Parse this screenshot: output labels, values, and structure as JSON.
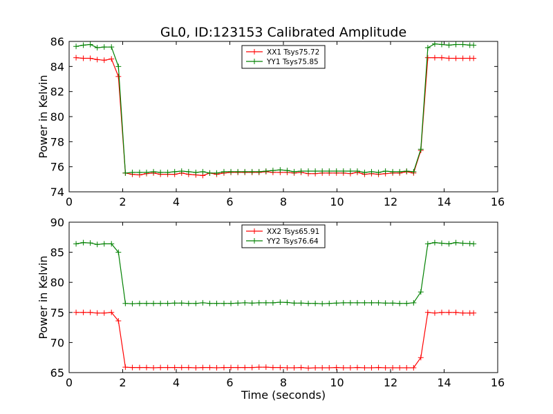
{
  "title": "GL0, ID:123153 Calibrated Amplitude",
  "xlabel": "Time (seconds)",
  "chart_data": [
    {
      "type": "line",
      "ylabel": "Power in Kelvin",
      "xlim": [
        0,
        16
      ],
      "ylim": [
        74,
        86
      ],
      "xticks": [
        0,
        2,
        4,
        6,
        8,
        10,
        12,
        14,
        16
      ],
      "yticks": [
        74,
        76,
        78,
        80,
        82,
        84,
        86
      ],
      "legend_position": "top-center",
      "x": [
        0.26,
        0.53,
        0.79,
        1.05,
        1.31,
        1.58,
        1.84,
        2.1,
        2.36,
        2.63,
        2.89,
        3.15,
        3.41,
        3.68,
        3.94,
        4.2,
        4.46,
        4.73,
        4.99,
        5.25,
        5.51,
        5.78,
        6.04,
        6.3,
        6.56,
        6.83,
        7.09,
        7.35,
        7.61,
        7.88,
        8.14,
        8.4,
        8.66,
        8.93,
        9.19,
        9.45,
        9.71,
        9.98,
        10.24,
        10.5,
        10.76,
        11.03,
        11.29,
        11.55,
        11.81,
        12.08,
        12.34,
        12.6,
        12.86,
        13.13,
        13.39,
        13.65,
        13.91,
        14.18,
        14.44,
        14.7,
        14.96,
        15.1
      ],
      "series": [
        {
          "name": "XX1 Tsys75.72",
          "color": "#ff0000",
          "values": [
            84.7,
            84.65,
            84.65,
            84.55,
            84.5,
            84.6,
            83.2,
            75.5,
            75.4,
            75.35,
            75.45,
            75.5,
            75.4,
            75.4,
            75.4,
            75.5,
            75.4,
            75.35,
            75.3,
            75.5,
            75.4,
            75.5,
            75.55,
            75.55,
            75.55,
            75.55,
            75.55,
            75.6,
            75.55,
            75.55,
            75.55,
            75.5,
            75.55,
            75.45,
            75.45,
            75.5,
            75.5,
            75.5,
            75.5,
            75.45,
            75.55,
            75.4,
            75.45,
            75.4,
            75.45,
            75.5,
            75.5,
            75.6,
            75.5,
            77.3,
            84.7,
            84.7,
            84.7,
            84.65,
            84.65,
            84.65,
            84.65,
            84.65
          ]
        },
        {
          "name": "YY1 Tsys75.85",
          "color": "#008000",
          "values": [
            85.6,
            85.7,
            85.75,
            85.5,
            85.55,
            85.55,
            84.0,
            75.5,
            75.55,
            75.55,
            75.55,
            75.6,
            75.55,
            75.55,
            75.6,
            75.65,
            75.6,
            75.55,
            75.6,
            75.5,
            75.5,
            75.6,
            75.6,
            75.6,
            75.6,
            75.6,
            75.6,
            75.65,
            75.7,
            75.75,
            75.7,
            75.6,
            75.65,
            75.65,
            75.65,
            75.65,
            75.65,
            75.65,
            75.65,
            75.65,
            75.65,
            75.55,
            75.6,
            75.55,
            75.65,
            75.6,
            75.6,
            75.65,
            75.6,
            77.4,
            85.5,
            85.8,
            85.75,
            85.7,
            85.75,
            85.75,
            85.7,
            85.7
          ]
        }
      ]
    },
    {
      "type": "line",
      "ylabel": "Power in Kelvin",
      "xlim": [
        0,
        16
      ],
      "ylim": [
        65,
        90
      ],
      "xticks": [
        0,
        2,
        4,
        6,
        8,
        10,
        12,
        14,
        16
      ],
      "yticks": [
        65,
        70,
        75,
        80,
        85,
        90
      ],
      "legend_position": "top-center",
      "x": [
        0.26,
        0.53,
        0.79,
        1.05,
        1.31,
        1.58,
        1.84,
        2.1,
        2.36,
        2.63,
        2.89,
        3.15,
        3.41,
        3.68,
        3.94,
        4.2,
        4.46,
        4.73,
        4.99,
        5.25,
        5.51,
        5.78,
        6.04,
        6.3,
        6.56,
        6.83,
        7.09,
        7.35,
        7.61,
        7.88,
        8.14,
        8.4,
        8.66,
        8.93,
        9.19,
        9.45,
        9.71,
        9.98,
        10.24,
        10.5,
        10.76,
        11.03,
        11.29,
        11.55,
        11.81,
        12.08,
        12.34,
        12.6,
        12.86,
        13.13,
        13.39,
        13.65,
        13.91,
        14.18,
        14.44,
        14.7,
        14.96,
        15.1
      ],
      "series": [
        {
          "name": "XX2 Tsys65.91",
          "color": "#ff0000",
          "values": [
            75.0,
            75.0,
            75.0,
            74.9,
            74.9,
            75.0,
            73.6,
            65.9,
            65.85,
            65.85,
            65.85,
            65.8,
            65.85,
            65.85,
            65.85,
            65.85,
            65.85,
            65.8,
            65.85,
            65.85,
            65.8,
            65.85,
            65.85,
            65.85,
            65.85,
            65.85,
            65.9,
            65.9,
            65.85,
            65.85,
            65.8,
            65.8,
            65.85,
            65.75,
            65.8,
            65.8,
            65.8,
            65.85,
            65.8,
            65.8,
            65.85,
            65.8,
            65.8,
            65.85,
            65.8,
            65.8,
            65.8,
            65.8,
            65.8,
            67.5,
            75.0,
            74.9,
            75.0,
            75.0,
            75.0,
            74.9,
            74.9,
            74.9
          ]
        },
        {
          "name": "YY2 Tsys76.64",
          "color": "#008000",
          "values": [
            86.4,
            86.6,
            86.55,
            86.3,
            86.4,
            86.4,
            85.0,
            76.5,
            76.45,
            76.5,
            76.5,
            76.5,
            76.5,
            76.5,
            76.55,
            76.55,
            76.5,
            76.5,
            76.6,
            76.5,
            76.5,
            76.5,
            76.5,
            76.55,
            76.6,
            76.55,
            76.6,
            76.6,
            76.6,
            76.7,
            76.65,
            76.55,
            76.55,
            76.5,
            76.5,
            76.45,
            76.5,
            76.55,
            76.6,
            76.6,
            76.6,
            76.6,
            76.6,
            76.6,
            76.55,
            76.55,
            76.5,
            76.5,
            76.6,
            78.4,
            86.4,
            86.6,
            86.5,
            86.4,
            86.6,
            86.5,
            86.45,
            86.4
          ]
        }
      ]
    }
  ]
}
